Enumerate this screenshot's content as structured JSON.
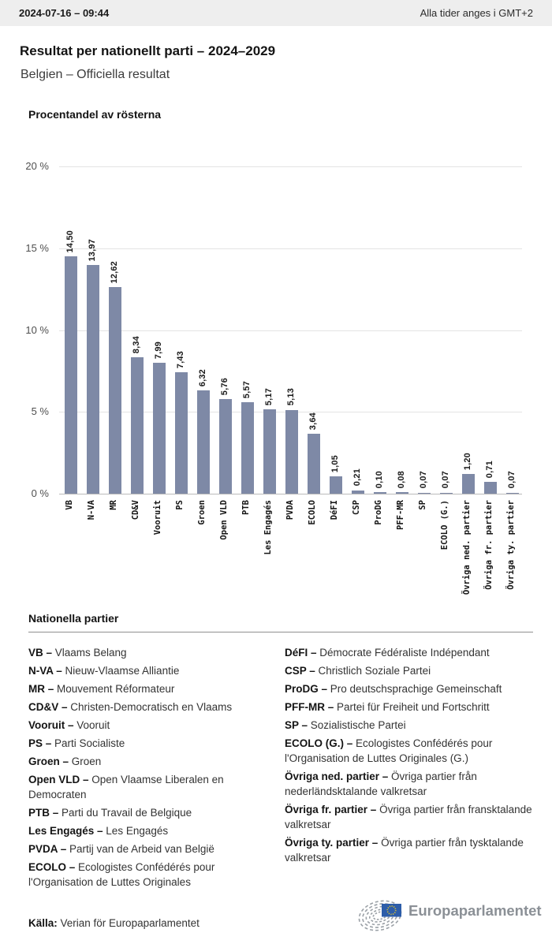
{
  "header": {
    "datetime": "2024-07-16 – 09:44",
    "timezone_note": "Alla tider anges i GMT+2"
  },
  "page": {
    "title": "Resultat per nationellt parti – 2024–2029",
    "subtitle": "Belgien – Officiella resultat"
  },
  "chart_data": {
    "type": "bar",
    "title": "Procentandel av rösterna",
    "categories": [
      "VB",
      "N-VA",
      "MR",
      "CD&V",
      "Vooruit",
      "PS",
      "Groen",
      "Open VLD",
      "PTB",
      "Les Engagés",
      "PVDA",
      "ECOLO",
      "DéFI",
      "CSP",
      "ProDG",
      "PFF-MR",
      "SP",
      "ECOLO (G.)",
      "Övriga ned. partier",
      "Övriga fr. partier",
      "Övriga ty. partier"
    ],
    "values": [
      14.5,
      13.97,
      12.62,
      8.34,
      7.99,
      7.43,
      6.32,
      5.76,
      5.57,
      5.17,
      5.13,
      3.64,
      1.05,
      0.21,
      0.1,
      0.08,
      0.07,
      0.07,
      1.2,
      0.71,
      0.07
    ],
    "value_labels": [
      "14,50",
      "13,97",
      "12,62",
      "8,34",
      "7,99",
      "7,43",
      "6,32",
      "5,76",
      "5,57",
      "5,17",
      "5,13",
      "3,64",
      "1,05",
      "0,21",
      "0,10",
      "0,08",
      "0,07",
      "0,07",
      "1,20",
      "0,71",
      "0,07"
    ],
    "ylabel": "Procentandel av rösterna",
    "ytick_labels": [
      "20 %",
      "15 %",
      "10 %",
      "5 %",
      "0 %"
    ],
    "ylim": [
      0,
      20
    ],
    "grid": true,
    "legend_position": "none",
    "bar_color": "#7e89a6"
  },
  "legend": {
    "heading": "Nationella partier",
    "separator": " – ",
    "columns": [
      [
        {
          "abbr": "VB",
          "name": "Vlaams Belang"
        },
        {
          "abbr": "N-VA",
          "name": "Nieuw-Vlaamse Alliantie"
        },
        {
          "abbr": "MR",
          "name": "Mouvement Réformateur"
        },
        {
          "abbr": "CD&V",
          "name": "Christen-Democratisch en Vlaams"
        },
        {
          "abbr": "Vooruit",
          "name": "Vooruit"
        },
        {
          "abbr": "PS",
          "name": "Parti Socialiste"
        },
        {
          "abbr": "Groen",
          "name": "Groen"
        },
        {
          "abbr": "Open VLD",
          "name": "Open Vlaamse Liberalen en Democraten"
        },
        {
          "abbr": "PTB",
          "name": "Parti du Travail de Belgique"
        },
        {
          "abbr": "Les Engagés",
          "name": "Les Engagés"
        },
        {
          "abbr": "PVDA",
          "name": "Partij van de Arbeid van België"
        },
        {
          "abbr": "ECOLO",
          "name": "Ecologistes Confédérés pour l'Organisation de Luttes Originales"
        }
      ],
      [
        {
          "abbr": "DéFI",
          "name": "Démocrate Fédéraliste Indépendant"
        },
        {
          "abbr": "CSP",
          "name": "Christlich Soziale Partei"
        },
        {
          "abbr": "ProDG",
          "name": "Pro deutschsprachige Gemeinschaft"
        },
        {
          "abbr": "PFF-MR",
          "name": "Partei für Freiheit und Fortschritt"
        },
        {
          "abbr": "SP",
          "name": "Sozialistische Partei"
        },
        {
          "abbr": "ECOLO (G.)",
          "name": "Ecologistes Confédérés pour l'Organisation de Luttes Originales (G.)"
        },
        {
          "abbr": "Övriga ned. partier",
          "name": "Övriga partier från nederländsktalande valkretsar"
        },
        {
          "abbr": "Övriga fr. partier",
          "name": "Övriga partier från fransktalande valkretsar"
        },
        {
          "abbr": "Övriga ty. partier",
          "name": "Övriga partier från tysktalande valkretsar"
        }
      ]
    ]
  },
  "footer": {
    "source_label": "Källa:",
    "source_text": " Verian för Europaparlamentet",
    "logo_text": "Europaparlamentet"
  },
  "colors": {
    "bar": "#7e89a6",
    "topbar_bg": "#eeeeee",
    "gridline": "#e3e3e3",
    "flag_blue": "#2d5da9",
    "flag_stars": "#ffd617",
    "logo_gray": "#8b9096"
  }
}
